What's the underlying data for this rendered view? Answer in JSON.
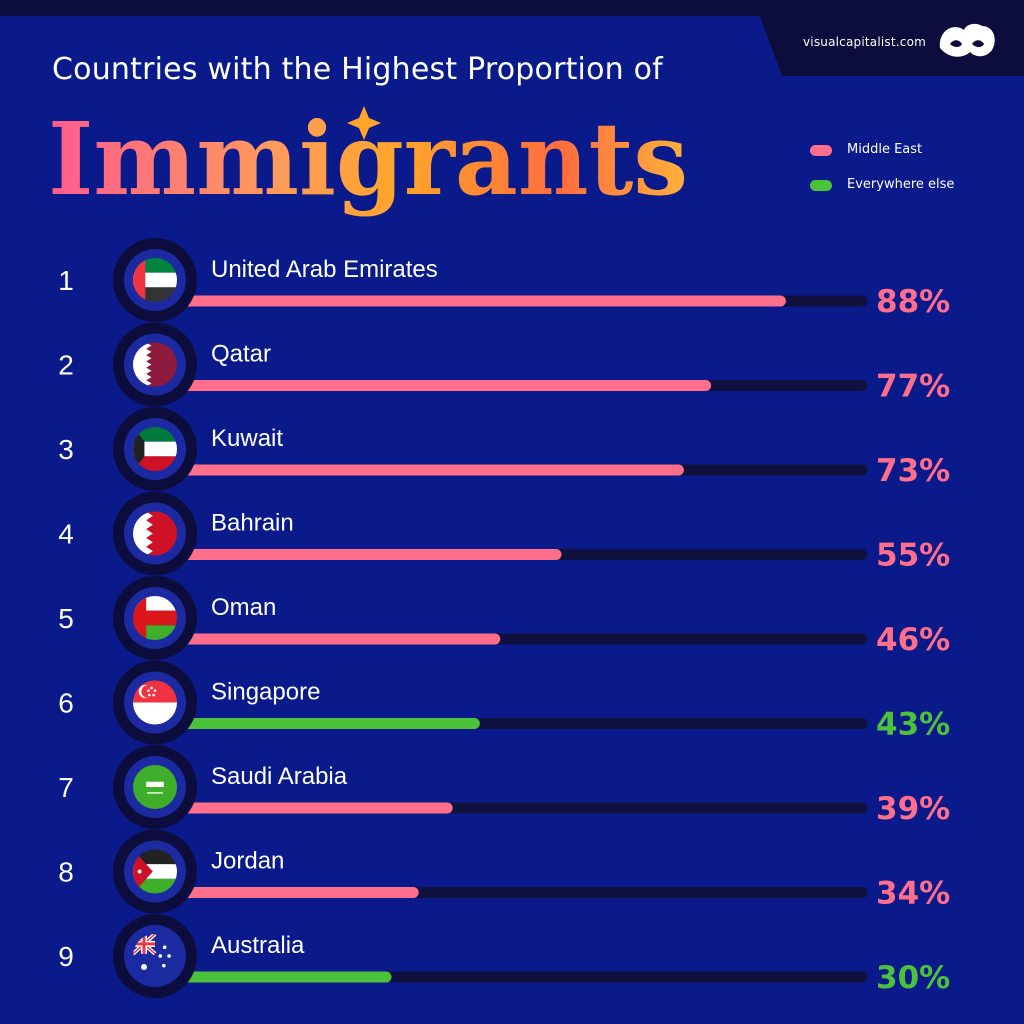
{
  "header": {
    "title_line": "Countries with the Highest Proportion of",
    "title_big": "Immigrants",
    "brand": "visualcapitalist.com"
  },
  "colors": {
    "background": "#0a1a8a",
    "track": "#10103f",
    "middle_east": "#ff6e8a",
    "everywhere_else": "#4cc23a"
  },
  "legend": [
    {
      "label": "Middle East",
      "color": "#ff6e8a"
    },
    {
      "label": "Everywhere else",
      "color": "#4cc23a"
    }
  ],
  "chart_data": {
    "type": "bar",
    "orientation": "horizontal",
    "title": "Countries with the Highest Proportion of Immigrants",
    "xlim": [
      0,
      100
    ],
    "legend_position": "top-right",
    "series": [
      {
        "name": "Middle East",
        "color": "#ff6e8a"
      },
      {
        "name": "Everywhere else",
        "color": "#4cc23a"
      }
    ],
    "rows": [
      {
        "rank": "1",
        "country": "United Arab Emirates",
        "value": 88,
        "label": "88%",
        "group": "Middle East",
        "flag": "uae-flag"
      },
      {
        "rank": "2",
        "country": "Qatar",
        "value": 77,
        "label": "77%",
        "group": "Middle East",
        "flag": "qatar-flag"
      },
      {
        "rank": "3",
        "country": "Kuwait",
        "value": 73,
        "label": "73%",
        "group": "Middle East",
        "flag": "kuwait-flag"
      },
      {
        "rank": "4",
        "country": "Bahrain",
        "value": 55,
        "label": "55%",
        "group": "Middle East",
        "flag": "bahrain-flag"
      },
      {
        "rank": "5",
        "country": "Oman",
        "value": 46,
        "label": "46%",
        "group": "Middle East",
        "flag": "oman-flag"
      },
      {
        "rank": "6",
        "country": "Singapore",
        "value": 43,
        "label": "43%",
        "group": "Everywhere else",
        "flag": "singapore-flag"
      },
      {
        "rank": "7",
        "country": "Saudi Arabia",
        "value": 39,
        "label": "39%",
        "group": "Middle East",
        "flag": "saudi-arabia-flag"
      },
      {
        "rank": "8",
        "country": "Jordan",
        "value": 34,
        "label": "34%",
        "group": "Middle East",
        "flag": "jordan-flag"
      },
      {
        "rank": "9",
        "country": "Australia",
        "value": 30,
        "label": "30%",
        "group": "Everywhere else",
        "flag": "australia-flag"
      }
    ]
  }
}
